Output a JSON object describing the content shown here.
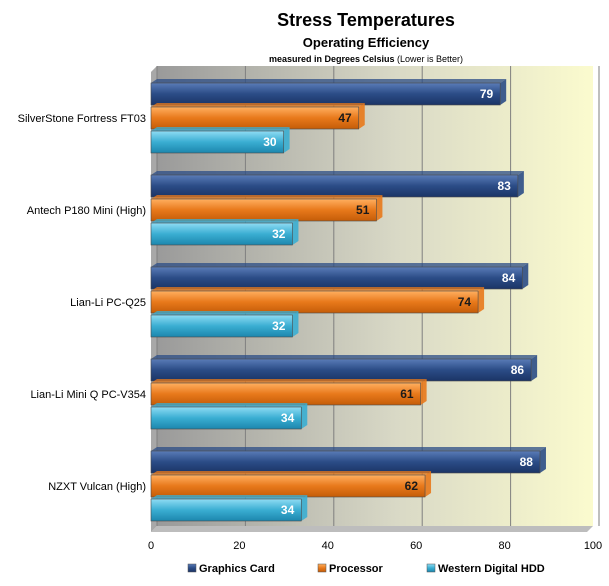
{
  "chart_data": {
    "type": "bar",
    "orientation": "horizontal",
    "title": "Stress Temperatures",
    "subtitle": "Operating Efficiency",
    "caption_bold": "measured in Degrees Celsius",
    "caption_normal": " (Lower is Better)",
    "categories": [
      "SilverStone Fortress FT03",
      "Antech P180 Mini (High)",
      "Lian-Li PC-Q25",
      "Lian-Li Mini Q PC-V354",
      "NZXT Vulcan (High)"
    ],
    "series": [
      {
        "name": "Graphics Card",
        "color": "#2b4c86",
        "values": [
          79,
          83,
          84,
          86,
          88
        ]
      },
      {
        "name": "Processor",
        "color": "#e8791b",
        "values": [
          47,
          51,
          74,
          61,
          62
        ]
      },
      {
        "name": "Western Digital HDD",
        "color": "#3aaed2",
        "values": [
          30,
          32,
          32,
          34,
          34
        ]
      }
    ],
    "xlim": [
      0,
      100
    ],
    "xticks": [
      0,
      20,
      40,
      60,
      80,
      100
    ],
    "grid": true,
    "legend_position": "bottom"
  }
}
